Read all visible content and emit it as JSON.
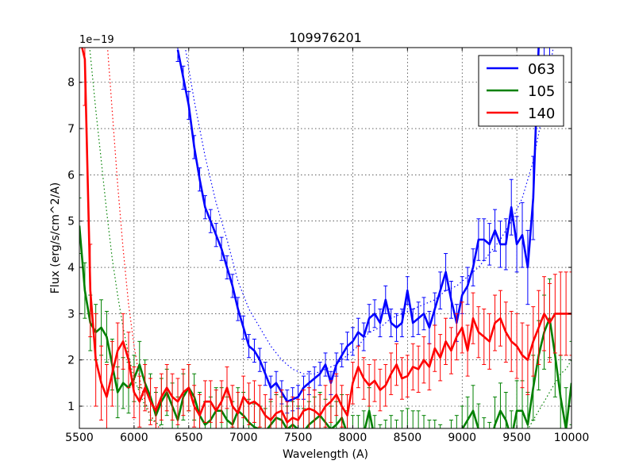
{
  "chart_data": {
    "type": "line",
    "title": "109976201",
    "xlabel": "Wavelength (A)",
    "ylabel": "Flux (erg/s/cm^2/A)",
    "y_offset_label": "1e−19",
    "xlim": [
      5500,
      10000
    ],
    "ylim": [
      0.52,
      8.75
    ],
    "xticks": [
      "5500",
      "6000",
      "6500",
      "7000",
      "7500",
      "8000",
      "8500",
      "9000",
      "9500",
      "10000"
    ],
    "yticks": [
      "1",
      "2",
      "3",
      "4",
      "5",
      "6",
      "7",
      "8"
    ],
    "grid": true,
    "legend_position": "top-right",
    "series": [
      {
        "name": "063",
        "color": "#0000ff",
        "x": [
          6400,
          6450,
          6500,
          6550,
          6600,
          6650,
          6700,
          6750,
          6800,
          6850,
          6900,
          6950,
          7000,
          7050,
          7100,
          7150,
          7200,
          7250,
          7300,
          7350,
          7400,
          7450,
          7500,
          7550,
          7600,
          7650,
          7700,
          7750,
          7800,
          7850,
          7900,
          7950,
          8000,
          8050,
          8100,
          8150,
          8200,
          8250,
          8300,
          8350,
          8400,
          8450,
          8500,
          8550,
          8600,
          8650,
          8700,
          8750,
          8800,
          8850,
          8900,
          8950,
          9000,
          9050,
          9100,
          9150,
          9200,
          9250,
          9300,
          9350,
          9400,
          9450,
          9500,
          9550,
          9600,
          9650,
          9700,
          9750,
          9800
        ],
        "y": [
          8.7,
          8.1,
          7.5,
          6.6,
          5.9,
          5.3,
          5.0,
          4.7,
          4.4,
          4.0,
          3.6,
          3.1,
          2.7,
          2.3,
          2.2,
          2.0,
          1.7,
          1.4,
          1.5,
          1.3,
          1.1,
          1.15,
          1.2,
          1.4,
          1.5,
          1.6,
          1.7,
          1.9,
          1.5,
          1.9,
          2.1,
          2.3,
          2.4,
          2.6,
          2.5,
          2.9,
          3.0,
          2.8,
          3.3,
          2.8,
          2.7,
          2.8,
          3.5,
          2.8,
          2.9,
          3.0,
          2.7,
          3.1,
          3.5,
          3.9,
          3.3,
          2.8,
          3.4,
          3.6,
          4.0,
          4.6,
          4.6,
          4.5,
          4.8,
          4.5,
          4.5,
          5.3,
          4.5,
          4.7,
          4.0,
          5.5,
          8.8,
          8.8,
          8.8
        ],
        "yerr": [
          0.25,
          0.25,
          0.3,
          0.25,
          0.25,
          0.25,
          0.25,
          0.25,
          0.25,
          0.25,
          0.25,
          0.25,
          0.25,
          0.25,
          0.25,
          0.25,
          0.25,
          0.25,
          0.25,
          0.25,
          0.25,
          0.25,
          0.25,
          0.25,
          0.25,
          0.25,
          0.25,
          0.25,
          0.25,
          0.25,
          0.25,
          0.3,
          0.3,
          0.3,
          0.3,
          0.3,
          0.3,
          0.3,
          0.3,
          0.3,
          0.3,
          0.3,
          0.3,
          0.3,
          0.35,
          0.35,
          0.35,
          0.35,
          0.4,
          0.4,
          0.4,
          0.4,
          0.4,
          0.4,
          0.4,
          0.45,
          0.45,
          0.45,
          0.45,
          0.5,
          0.55,
          0.6,
          0.6,
          0.7,
          0.8,
          0.9,
          1.0,
          1.0,
          1.0
        ],
        "model": {
          "x": [
            6450,
            6550,
            6650,
            6750,
            6850,
            6950,
            7050,
            7150,
            7250,
            7350,
            7450,
            7550,
            7650,
            7750,
            7850,
            7950,
            8050,
            8150,
            8250,
            8350,
            8450,
            8550,
            8650,
            8750,
            8850,
            8950,
            9050,
            9150,
            9250,
            9350,
            9450,
            9550,
            9650,
            9750,
            9850
          ],
          "y": [
            9.0,
            7.6,
            6.4,
            5.4,
            4.6,
            3.7,
            3.1,
            2.7,
            2.3,
            2.0,
            1.8,
            1.7,
            1.7,
            1.8,
            1.9,
            2.1,
            2.3,
            2.6,
            2.7,
            2.9,
            3.0,
            3.1,
            3.2,
            3.3,
            3.5,
            3.6,
            3.8,
            4.0,
            4.3,
            4.6,
            5.0,
            5.5,
            6.3,
            7.5,
            9.0
          ]
        }
      },
      {
        "name": "105",
        "color": "#008000",
        "x": [
          5500,
          5550,
          5600,
          5650,
          5700,
          5750,
          5800,
          5850,
          5900,
          5950,
          6000,
          6050,
          6100,
          6150,
          6200,
          6250,
          6300,
          6350,
          6400,
          6450,
          6500,
          6550,
          6600,
          6650,
          6700,
          6750,
          6800,
          6850,
          6900,
          6950,
          7000,
          7050,
          7100,
          7150,
          7200,
          7250,
          7300,
          7350,
          7400,
          7450,
          7500,
          7550,
          7600,
          7650,
          7700,
          7750,
          7800,
          7850,
          7900,
          7950,
          8000,
          8050,
          8100,
          8150,
          8200,
          8250,
          8300,
          8350,
          8400,
          8450,
          8500,
          8550,
          8600,
          8650,
          8700,
          8750,
          8800,
          8850,
          8900,
          8950,
          9000,
          9050,
          9100,
          9150,
          9200,
          9250,
          9300,
          9350,
          9400,
          9450,
          9500,
          9550,
          9600,
          9650,
          9700,
          9750,
          9800,
          9850,
          9900,
          9950,
          10000
        ],
        "y": [
          4.9,
          3.5,
          2.8,
          2.6,
          2.7,
          2.5,
          1.9,
          1.3,
          1.5,
          1.4,
          1.6,
          1.9,
          1.5,
          1.2,
          0.8,
          1.1,
          1.3,
          1.0,
          0.7,
          1.2,
          1.4,
          1.2,
          0.8,
          0.6,
          0.7,
          0.9,
          0.9,
          0.7,
          0.6,
          0.9,
          0.8,
          0.65,
          0.55,
          0.5,
          0.45,
          0.6,
          0.75,
          0.7,
          0.5,
          0.6,
          0.5,
          0.45,
          0.6,
          0.7,
          0.8,
          0.65,
          0.5,
          0.6,
          0.75,
          0.4,
          0.3,
          0.3,
          0.4,
          0.9,
          0.3,
          0.1,
          0.2,
          0.3,
          0.2,
          0.4,
          0.45,
          0.4,
          0.4,
          0.3,
          0.2,
          0.2,
          0.1,
          0.0,
          0.2,
          0.3,
          0.5,
          0.7,
          0.9,
          0.5,
          0.2,
          0.1,
          0.6,
          0.9,
          0.7,
          0.3,
          0.9,
          0.9,
          0.6,
          1.4,
          2.1,
          2.6,
          2.9,
          2.1,
          1.2,
          0.5,
          1.5
        ],
        "yerr": [
          0.6,
          0.6,
          0.6,
          0.6,
          0.6,
          0.55,
          0.55,
          0.55,
          0.55,
          0.55,
          0.5,
          0.5,
          0.5,
          0.5,
          0.5,
          0.5,
          0.5,
          0.5,
          0.5,
          0.5,
          0.5,
          0.5,
          0.5,
          0.5,
          0.5,
          0.5,
          0.5,
          0.5,
          0.5,
          0.5,
          0.5,
          0.5,
          0.5,
          0.5,
          0.5,
          0.5,
          0.5,
          0.5,
          0.5,
          0.5,
          0.5,
          0.5,
          0.5,
          0.5,
          0.5,
          0.5,
          0.5,
          0.5,
          0.5,
          0.5,
          0.5,
          0.5,
          0.5,
          0.5,
          0.5,
          0.5,
          0.5,
          0.5,
          0.5,
          0.5,
          0.5,
          0.5,
          0.5,
          0.5,
          0.5,
          0.5,
          0.5,
          0.5,
          0.5,
          0.5,
          0.5,
          0.5,
          0.55,
          0.55,
          0.55,
          0.55,
          0.6,
          0.6,
          0.6,
          0.6,
          0.65,
          0.65,
          0.7,
          0.7,
          0.75,
          0.8,
          0.85,
          0.9,
          0.9,
          0.9,
          0.9
        ],
        "model": {
          "x": [
            5500,
            5550,
            5600,
            5650,
            5700,
            5750,
            5800,
            5850,
            5900,
            5950,
            6000,
            6050,
            6100,
            6150,
            6200,
            6250,
            6300,
            6350,
            6400,
            6450,
            6500,
            6550,
            6600,
            6650,
            6700,
            9600,
            9650,
            9700,
            9750,
            9800,
            9850,
            9900,
            9950,
            10000
          ],
          "y": [
            11.0,
            9.8,
            8.6,
            7.4,
            6.3,
            5.2,
            4.2,
            3.4,
            2.7,
            2.1,
            1.6,
            1.3,
            1.0,
            0.8,
            0.65,
            0.55,
            0.45,
            0.4,
            0.35,
            0.3,
            0.28,
            0.26,
            0.25,
            0.24,
            0.22,
            0.5,
            0.7,
            0.9,
            1.1,
            1.3,
            1.5,
            1.7,
            1.8,
            2.0
          ]
        }
      },
      {
        "name": "140",
        "color": "#ff0000",
        "x": [
          5500,
          5550,
          5600,
          5650,
          5700,
          5750,
          5800,
          5850,
          5900,
          5950,
          6000,
          6050,
          6100,
          6150,
          6200,
          6250,
          6300,
          6350,
          6400,
          6450,
          6500,
          6550,
          6600,
          6650,
          6700,
          6750,
          6800,
          6850,
          6900,
          6950,
          7000,
          7050,
          7100,
          7150,
          7200,
          7250,
          7300,
          7350,
          7400,
          7450,
          7500,
          7550,
          7600,
          7650,
          7700,
          7750,
          7800,
          7850,
          7900,
          7950,
          8000,
          8050,
          8100,
          8150,
          8200,
          8250,
          8300,
          8350,
          8400,
          8450,
          8500,
          8550,
          8600,
          8650,
          8700,
          8750,
          8800,
          8850,
          8900,
          8950,
          9000,
          9050,
          9100,
          9150,
          9200,
          9250,
          9300,
          9350,
          9400,
          9450,
          9500,
          9550,
          9600,
          9650,
          9700,
          9750,
          9800,
          9850,
          9900,
          9950,
          10000
        ],
        "y": [
          9.0,
          8.5,
          3.5,
          2.0,
          1.5,
          1.2,
          1.7,
          2.2,
          2.4,
          2.0,
          1.3,
          1.1,
          1.4,
          1.1,
          0.9,
          1.2,
          1.4,
          1.2,
          1.1,
          1.3,
          1.4,
          1.0,
          0.8,
          1.1,
          1.1,
          0.9,
          1.1,
          1.4,
          1.0,
          0.85,
          1.2,
          1.05,
          1.1,
          1.0,
          0.8,
          0.7,
          0.85,
          0.9,
          0.65,
          0.75,
          0.7,
          0.9,
          0.95,
          0.9,
          0.8,
          1.0,
          1.1,
          1.25,
          1.0,
          0.8,
          1.5,
          1.85,
          1.6,
          1.45,
          1.55,
          1.35,
          1.45,
          1.7,
          1.9,
          1.6,
          1.65,
          1.85,
          1.8,
          2.0,
          1.85,
          2.25,
          2.05,
          2.4,
          2.2,
          2.5,
          2.7,
          2.2,
          2.9,
          2.6,
          2.5,
          2.4,
          2.8,
          2.9,
          2.6,
          2.4,
          2.3,
          2.1,
          2.0,
          2.4,
          2.7,
          3.0,
          2.8,
          3.0,
          3.0,
          3.0,
          3.0
        ],
        "yerr": [
          1.0,
          1.0,
          1.0,
          1.0,
          0.8,
          0.7,
          0.7,
          0.6,
          0.6,
          0.6,
          0.55,
          0.55,
          0.5,
          0.5,
          0.5,
          0.5,
          0.5,
          0.5,
          0.5,
          0.5,
          0.5,
          0.45,
          0.45,
          0.45,
          0.45,
          0.45,
          0.45,
          0.45,
          0.45,
          0.45,
          0.45,
          0.45,
          0.45,
          0.45,
          0.45,
          0.45,
          0.45,
          0.45,
          0.45,
          0.45,
          0.45,
          0.45,
          0.45,
          0.45,
          0.45,
          0.45,
          0.45,
          0.45,
          0.45,
          0.45,
          0.45,
          0.45,
          0.45,
          0.45,
          0.45,
          0.45,
          0.45,
          0.45,
          0.45,
          0.45,
          0.45,
          0.5,
          0.5,
          0.5,
          0.5,
          0.5,
          0.5,
          0.5,
          0.5,
          0.5,
          0.55,
          0.55,
          0.55,
          0.55,
          0.6,
          0.6,
          0.6,
          0.6,
          0.65,
          0.65,
          0.7,
          0.7,
          0.75,
          0.75,
          0.8,
          0.8,
          0.85,
          0.85,
          0.9,
          0.9,
          0.9
        ],
        "model": {
          "x": [
            5750,
            5800,
            5850,
            5900,
            5950,
            6000,
            6050,
            6100,
            6150,
            6200,
            6250,
            6300,
            6350,
            6400
          ],
          "y": [
            9.0,
            7.4,
            5.8,
            4.4,
            3.2,
            2.3,
            1.6,
            1.1,
            0.8,
            0.6,
            0.5,
            0.4,
            0.35,
            0.3
          ]
        }
      }
    ]
  }
}
